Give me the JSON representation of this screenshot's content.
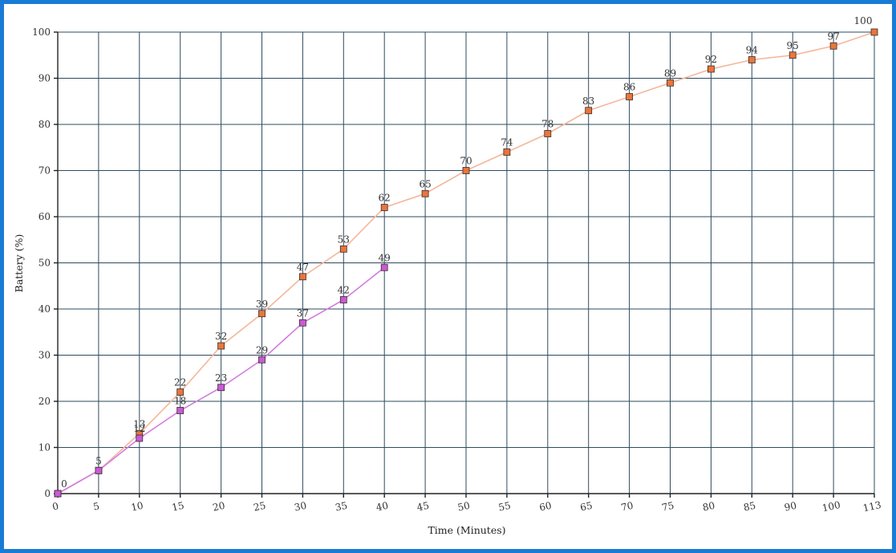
{
  "chart_data": {
    "type": "line",
    "title": "",
    "xlabel": "Time (Minutes)",
    "ylabel": "Battery (%)",
    "ylim": [
      0,
      100
    ],
    "yticks": [
      0,
      10,
      20,
      30,
      40,
      50,
      60,
      70,
      80,
      90,
      100
    ],
    "xticks": [
      "0",
      "5",
      "10",
      "15",
      "20",
      "25",
      "30",
      "35",
      "40",
      "45",
      "50",
      "55",
      "60",
      "65",
      "70",
      "75",
      "80",
      "85",
      "90",
      "100",
      "113"
    ],
    "grid": true,
    "legend": "none",
    "series": [
      {
        "color": "#e8763c",
        "line_color": "#f3b79a",
        "x": [
          "0",
          "5",
          "10",
          "15",
          "20",
          "25",
          "30",
          "35",
          "40",
          "45",
          "50",
          "55",
          "60",
          "65",
          "70",
          "75",
          "80",
          "85",
          "90",
          "100",
          "113"
        ],
        "values": [
          0,
          5,
          13,
          22,
          32,
          39,
          47,
          53,
          62,
          65,
          70,
          74,
          78,
          83,
          86,
          89,
          92,
          94,
          95,
          97,
          100
        ]
      },
      {
        "color": "#c95ad6",
        "line_color": "#d27ce0",
        "x": [
          "0",
          "5",
          "10",
          "15",
          "20",
          "25",
          "30",
          "35",
          "40"
        ],
        "values": [
          0,
          5,
          12,
          18,
          23,
          29,
          37,
          42,
          49
        ]
      }
    ]
  }
}
